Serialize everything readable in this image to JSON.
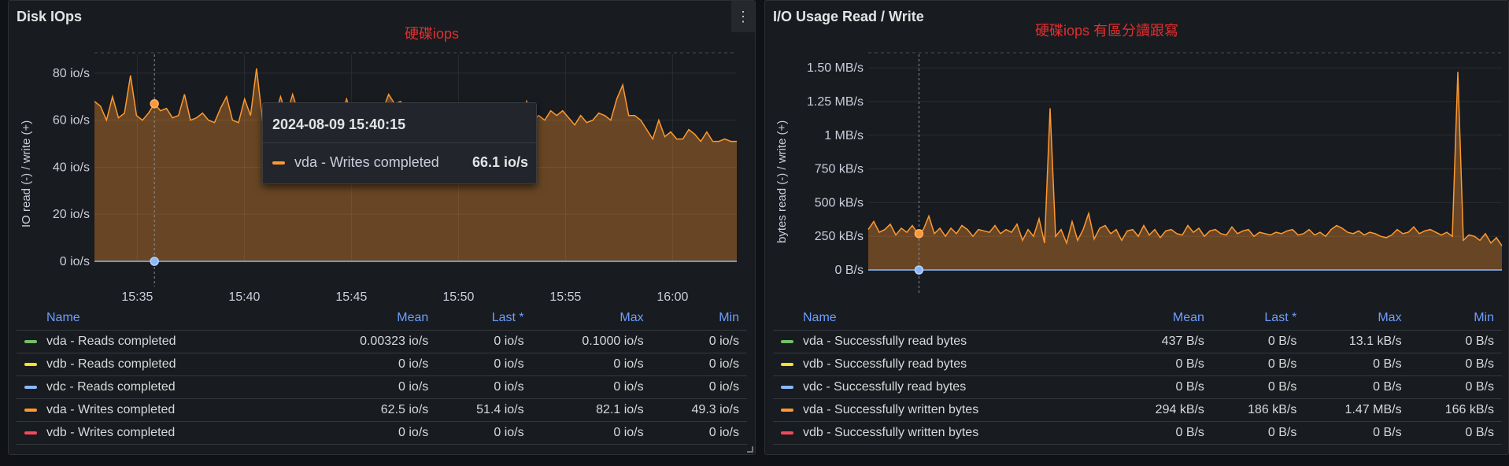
{
  "colors": {
    "writes": "#ff9830",
    "reads_green": "#73bf69",
    "reads_yellow": "#fade2a",
    "reads_blue": "#8ab8ff",
    "writes_red": "#f2495c",
    "annotation": "#e02f2f",
    "header_blue": "#6e9fff"
  },
  "left_panel": {
    "title": "Disk IOps",
    "annotation": "硬碟iops",
    "menu_icon": "⋮",
    "ylabel": "IO read (-) / write (+)",
    "tooltip": {
      "time": "2024-08-09 15:40:15",
      "series": "vda - Writes completed",
      "value": "66.1 io/s"
    },
    "legend": {
      "headers": [
        "Name",
        "Mean",
        "Last *",
        "Max",
        "Min"
      ],
      "rows": [
        {
          "name": "vda - Reads completed",
          "color": "#73bf69",
          "mean": "0.00323 io/s",
          "last": "0 io/s",
          "max": "0.1000 io/s",
          "min": "0 io/s"
        },
        {
          "name": "vdb - Reads completed",
          "color": "#fade2a",
          "mean": "0 io/s",
          "last": "0 io/s",
          "max": "0 io/s",
          "min": "0 io/s"
        },
        {
          "name": "vdc - Reads completed",
          "color": "#8ab8ff",
          "mean": "0 io/s",
          "last": "0 io/s",
          "max": "0 io/s",
          "min": "0 io/s"
        },
        {
          "name": "vda - Writes completed",
          "color": "#ff9830",
          "mean": "62.5 io/s",
          "last": "51.4 io/s",
          "max": "82.1 io/s",
          "min": "49.3 io/s"
        },
        {
          "name": "vdb - Writes completed",
          "color": "#f2495c",
          "mean": "0 io/s",
          "last": "0 io/s",
          "max": "0 io/s",
          "min": "0 io/s"
        }
      ]
    }
  },
  "right_panel": {
    "title": "I/O Usage Read / Write",
    "annotation": "硬碟iops 有區分讀跟寫",
    "ylabel": "bytes read (-) / write (+)",
    "legend": {
      "headers": [
        "Name",
        "Mean",
        "Last *",
        "Max",
        "Min"
      ],
      "rows": [
        {
          "name": "vda - Successfully read bytes",
          "color": "#73bf69",
          "mean": "437 B/s",
          "last": "0 B/s",
          "max": "13.1 kB/s",
          "min": "0 B/s"
        },
        {
          "name": "vdb - Successfully read bytes",
          "color": "#fade2a",
          "mean": "0 B/s",
          "last": "0 B/s",
          "max": "0 B/s",
          "min": "0 B/s"
        },
        {
          "name": "vdc - Successfully read bytes",
          "color": "#8ab8ff",
          "mean": "0 B/s",
          "last": "0 B/s",
          "max": "0 B/s",
          "min": "0 B/s"
        },
        {
          "name": "vda - Successfully written bytes",
          "color": "#ff9830",
          "mean": "294 kB/s",
          "last": "186 kB/s",
          "max": "1.47 MB/s",
          "min": "166 kB/s"
        },
        {
          "name": "vdb - Successfully written bytes",
          "color": "#f2495c",
          "mean": "0 B/s",
          "last": "0 B/s",
          "max": "0 B/s",
          "min": "0 B/s"
        }
      ]
    }
  },
  "chart_data": [
    {
      "type": "area",
      "title": "Disk IOps",
      "ylabel": "IO read (-) / write (+)",
      "ylim": [
        0,
        88
      ],
      "yticks": [
        "0 io/s",
        "20 io/s",
        "40 io/s",
        "60 io/s",
        "80 io/s"
      ],
      "ytick_values": [
        0,
        20,
        40,
        60,
        80
      ],
      "xticks": [
        "15:35",
        "15:40",
        "15:45",
        "15:50",
        "15:55",
        "16:00"
      ],
      "xtick_values": [
        35,
        40,
        45,
        50,
        55,
        60
      ],
      "xlim": [
        33,
        63
      ],
      "cursor_x": 35.8,
      "series": [
        {
          "name": "vda - Writes completed",
          "color": "#ff9830",
          "x_start": 33,
          "x_end": 63,
          "values": [
            68,
            66,
            60,
            70,
            61,
            63,
            79,
            62,
            60,
            63,
            67,
            64,
            65,
            61,
            62,
            71,
            60,
            61,
            63,
            60,
            59,
            65,
            70,
            60,
            59,
            69,
            62,
            82,
            60,
            65,
            61,
            70,
            62,
            71,
            63,
            65,
            59,
            64,
            67,
            62,
            61,
            61,
            69,
            61,
            60,
            63,
            65,
            62,
            64,
            71,
            67,
            68,
            62,
            67,
            61,
            66,
            63,
            62,
            65,
            58,
            61,
            66,
            59,
            62,
            64,
            58,
            60,
            62,
            61,
            59,
            66,
            58,
            68,
            60,
            62,
            60,
            64,
            62,
            64,
            61,
            58,
            62,
            59,
            60,
            63,
            62,
            60,
            69,
            75,
            62,
            62,
            60,
            56,
            52,
            60,
            53,
            55,
            52,
            52,
            56,
            54,
            51,
            55,
            51,
            51,
            52,
            51,
            51
          ]
        },
        {
          "name": "vda - Reads completed",
          "color": "#8ab8ff",
          "x_start": 33,
          "x_end": 63,
          "values": [
            0,
            0
          ]
        }
      ]
    },
    {
      "type": "area",
      "title": "I/O Usage Read / Write",
      "ylabel": "bytes read (-) / write (+)",
      "ylim": [
        0,
        1.6
      ],
      "yticks": [
        "0 B/s",
        "250 kB/s",
        "500 kB/s",
        "750 kB/s",
        "1 MB/s",
        "1.25 MB/s",
        "1.50 MB/s"
      ],
      "ytick_values": [
        0,
        0.25,
        0.5,
        0.75,
        1.0,
        1.25,
        1.5
      ],
      "xticks": [],
      "xlim": [
        33,
        63
      ],
      "cursor_x": 35.4,
      "series": [
        {
          "name": "vda - Successfully written bytes",
          "color": "#ff9830",
          "x_start": 33,
          "x_end": 63,
          "values": [
            0.3,
            0.36,
            0.28,
            0.3,
            0.34,
            0.26,
            0.31,
            0.28,
            0.33,
            0.27,
            0.3,
            0.4,
            0.27,
            0.31,
            0.25,
            0.31,
            0.27,
            0.33,
            0.3,
            0.25,
            0.3,
            0.29,
            0.28,
            0.33,
            0.27,
            0.3,
            0.28,
            0.34,
            0.22,
            0.3,
            0.25,
            0.38,
            0.2,
            1.2,
            0.25,
            0.3,
            0.2,
            0.36,
            0.22,
            0.3,
            0.42,
            0.23,
            0.31,
            0.33,
            0.27,
            0.3,
            0.22,
            0.29,
            0.3,
            0.25,
            0.33,
            0.26,
            0.3,
            0.24,
            0.29,
            0.3,
            0.27,
            0.26,
            0.33,
            0.28,
            0.31,
            0.25,
            0.29,
            0.3,
            0.27,
            0.26,
            0.32,
            0.27,
            0.29,
            0.3,
            0.25,
            0.28,
            0.27,
            0.26,
            0.28,
            0.27,
            0.29,
            0.3,
            0.26,
            0.27,
            0.3,
            0.26,
            0.28,
            0.25,
            0.3,
            0.33,
            0.31,
            0.28,
            0.27,
            0.29,
            0.26,
            0.28,
            0.27,
            0.25,
            0.24,
            0.26,
            0.3,
            0.27,
            0.28,
            0.32,
            0.27,
            0.29,
            0.3,
            0.28,
            0.26,
            0.28,
            0.25,
            1.47,
            0.22,
            0.26,
            0.25,
            0.22,
            0.27,
            0.2,
            0.24,
            0.18
          ]
        },
        {
          "name": "vda - Successfully read bytes",
          "color": "#8ab8ff",
          "x_start": 33,
          "x_end": 63,
          "values": [
            0,
            0
          ]
        }
      ]
    }
  ]
}
